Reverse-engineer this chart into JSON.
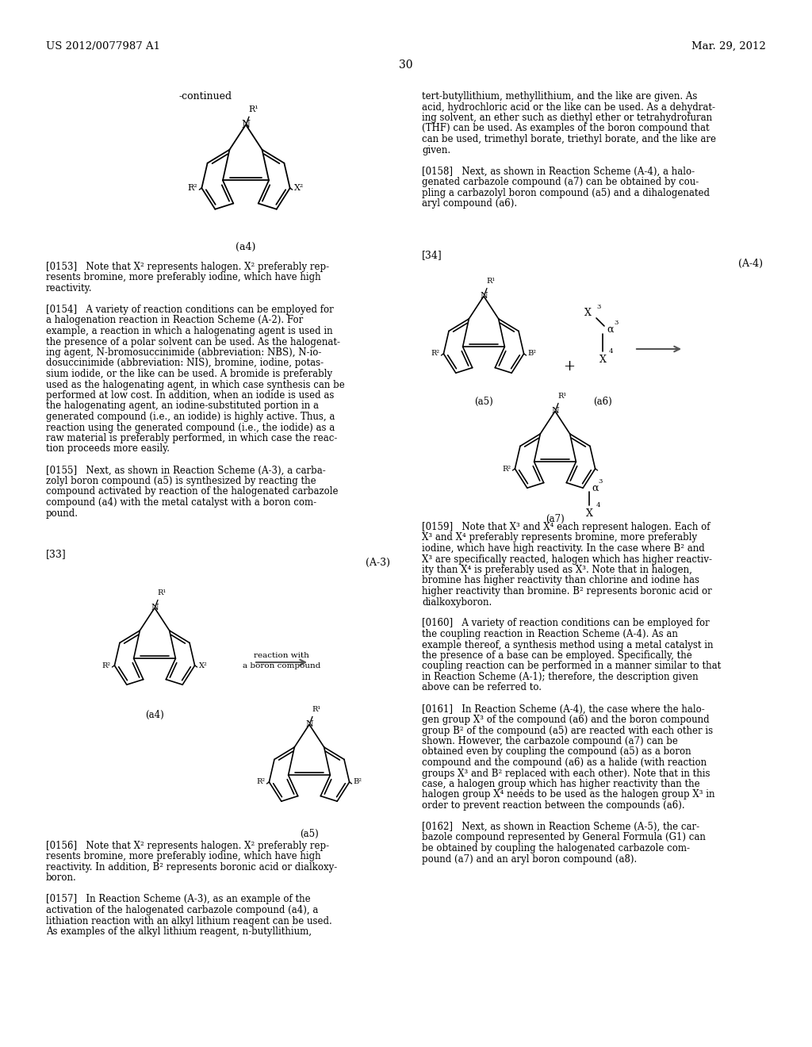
{
  "background_color": "#ffffff",
  "page_number": "30",
  "header_left": "US 2012/0077987 A1",
  "header_right": "Mar. 29, 2012"
}
